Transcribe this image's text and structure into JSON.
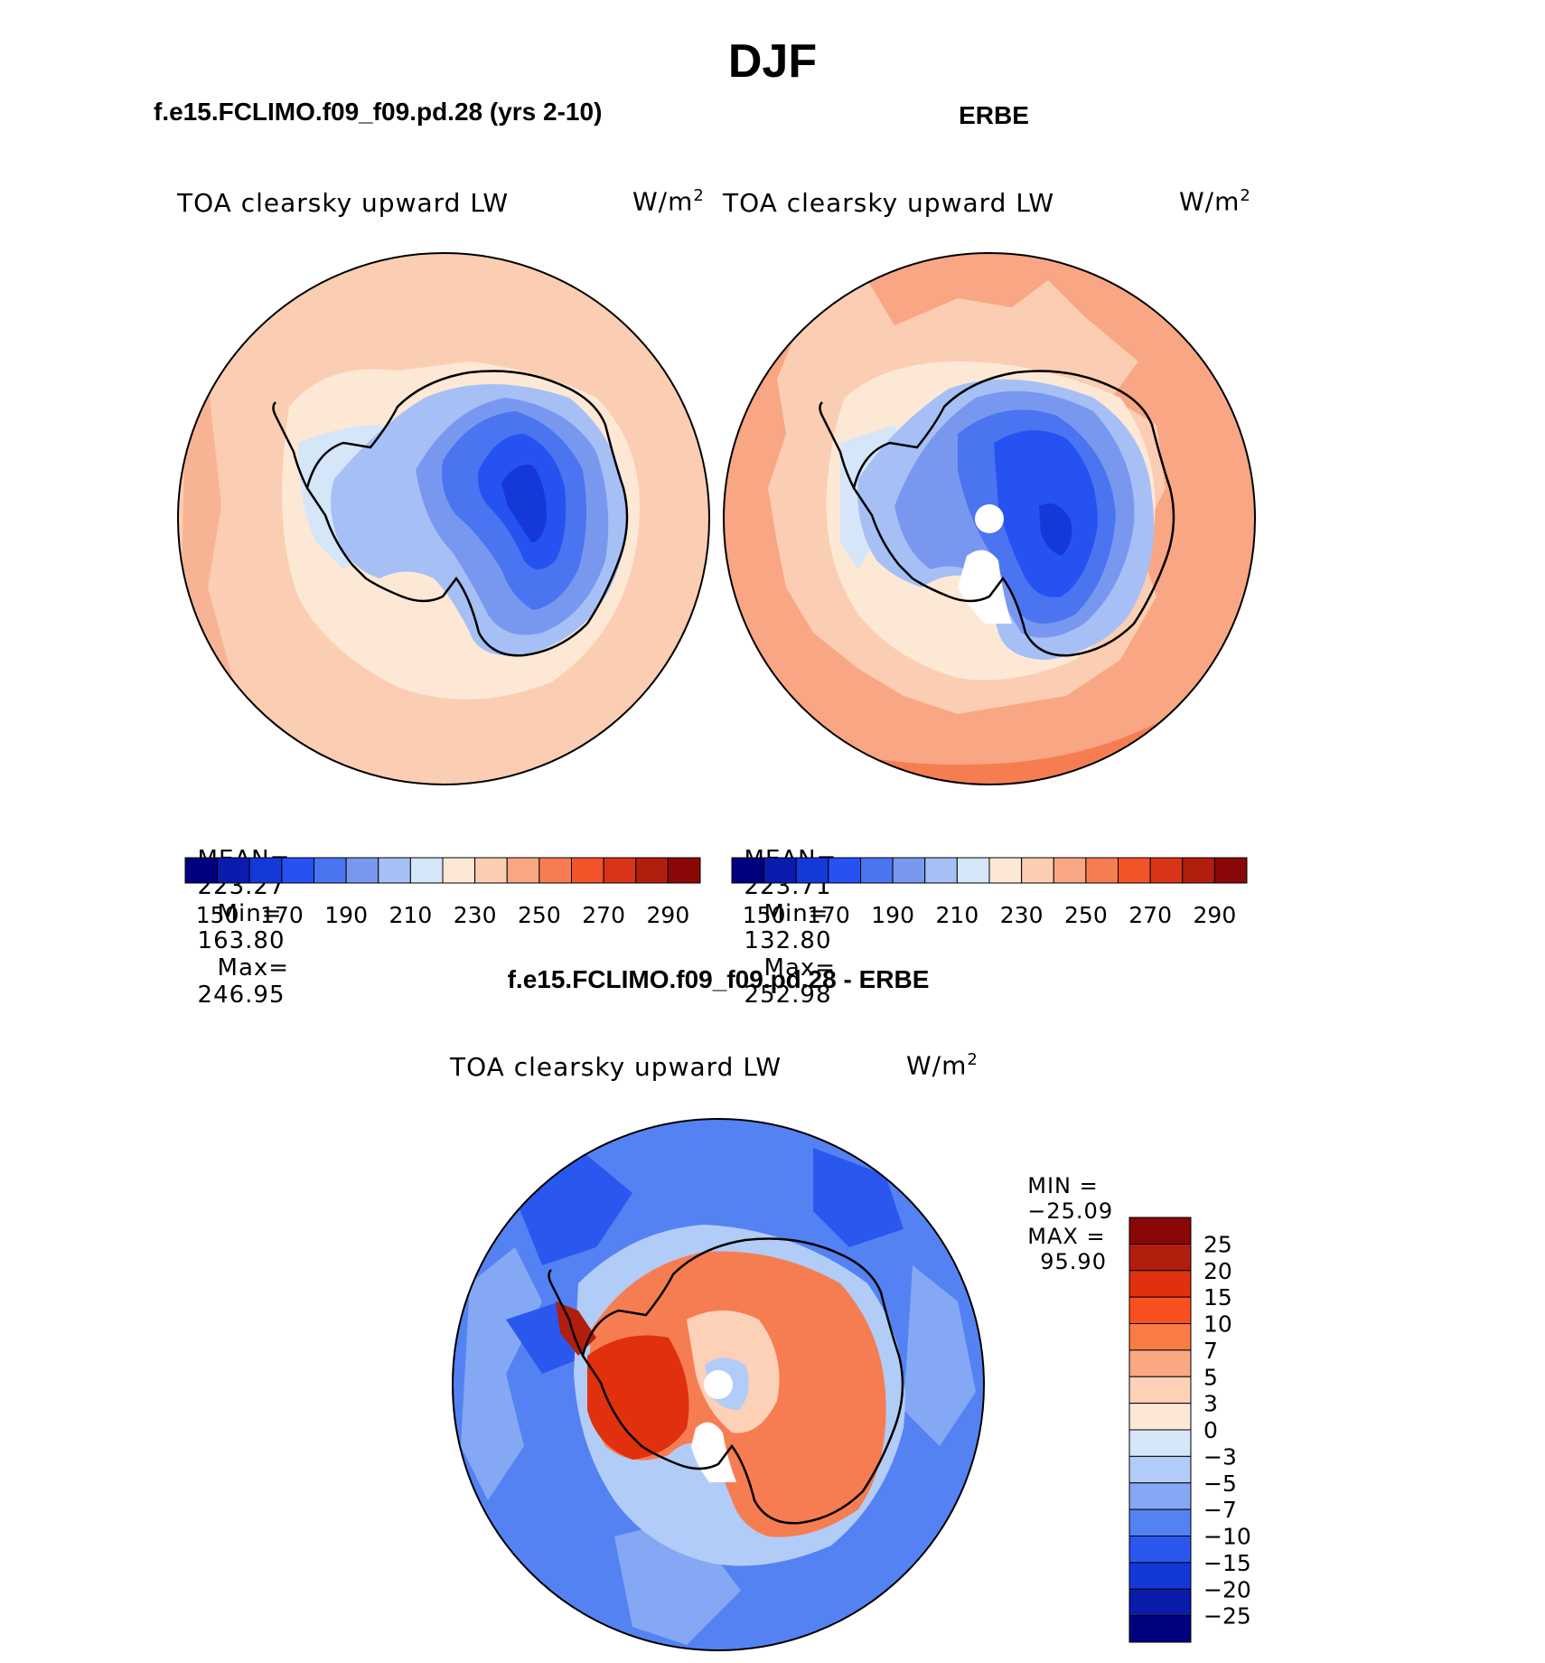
{
  "page": {
    "season_title": "DJF"
  },
  "panels": [
    {
      "case_title": "f.e15.FCLIMO.f09_f09.pd.28 (yrs 2-10)",
      "variable": "TOA clearsky upward LW",
      "units": "W/m",
      "units_sup": "2",
      "stats": {
        "mean_label": "MEAN=",
        "mean": "223.27",
        "min_label": "Min=",
        "min": "163.80",
        "max_label": "Max=",
        "max": "246.95"
      }
    },
    {
      "case_title": "ERBE",
      "variable": "TOA clearsky upward LW",
      "units": "W/m",
      "units_sup": "2",
      "stats": {
        "mean_label": "MEAN=",
        "mean": "223.71",
        "min_label": "Min=",
        "min": "132.80",
        "max_label": "Max=",
        "max": "252.98"
      }
    }
  ],
  "abs_colorbar": {
    "colors": [
      "#00007f",
      "#0a1caf",
      "#1538d8",
      "#2552f0",
      "#4a74f0",
      "#7898f0",
      "#a6c0f5",
      "#d4e6f8",
      "#fde8d6",
      "#fbcdb2",
      "#f8a683",
      "#f67d52",
      "#f2542a",
      "#d93418",
      "#b11e0e",
      "#8a0707"
    ],
    "tick_labels": [
      "150",
      "170",
      "190",
      "210",
      "230",
      "250",
      "270",
      "290"
    ]
  },
  "diff_panel": {
    "title": "f.e15.FCLIMO.f09_f09.pd.28 - ERBE",
    "variable": "TOA clearsky upward LW",
    "units": "W/m",
    "units_sup": "2",
    "min_label": "MIN =",
    "min": "−25.09",
    "max_label": "MAX =",
    "max": "95.90"
  },
  "diff_colorbar": {
    "colors": [
      "#8a0707",
      "#b11e0e",
      "#e0300e",
      "#fa4f1e",
      "#fa7c45",
      "#faa882",
      "#fdd0b8",
      "#fde8d6",
      "#d4e6f8",
      "#b2ccf8",
      "#85a8f5",
      "#5582f2",
      "#2a58ef",
      "#1438d8",
      "#0a1ca8",
      "#00007f"
    ],
    "tick_labels": [
      "25",
      "20",
      "15",
      "10",
      "7",
      "5",
      "3",
      "0",
      "−3",
      "−5",
      "−7",
      "−10",
      "−15",
      "−20",
      "−25"
    ]
  }
}
